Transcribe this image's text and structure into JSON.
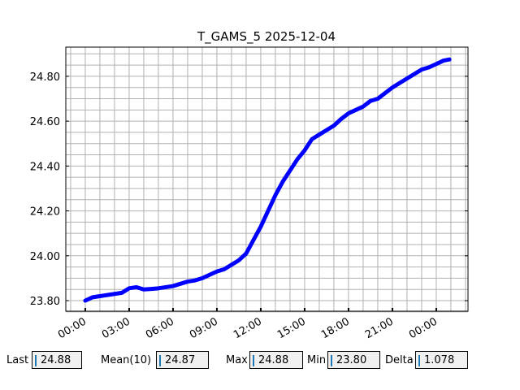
{
  "chart_data": {
    "type": "line",
    "title": "T_GAMS_5 2025-12-04",
    "x": [
      0,
      0.5,
      1,
      1.5,
      2,
      2.5,
      3,
      3.5,
      4,
      4.5,
      5,
      5.5,
      6,
      6.5,
      7,
      7.5,
      8,
      8.5,
      9,
      9.5,
      10,
      10.5,
      11,
      11.5,
      12,
      12.5,
      13,
      13.5,
      14,
      14.5,
      15,
      15.5,
      16,
      16.5,
      17,
      17.5,
      18,
      18.5,
      19,
      19.5,
      20,
      20.5,
      21,
      21.5,
      22,
      22.5,
      23,
      23.5,
      24,
      24.5,
      24.9
    ],
    "series": [
      {
        "name": "T_GAMS_5",
        "color": "#0000ff",
        "values": [
          23.8,
          23.815,
          23.82,
          23.825,
          23.83,
          23.835,
          23.855,
          23.86,
          23.85,
          23.852,
          23.855,
          23.86,
          23.865,
          23.875,
          23.885,
          23.89,
          23.9,
          23.915,
          23.93,
          23.94,
          23.96,
          23.98,
          24.01,
          24.07,
          24.13,
          24.2,
          24.27,
          24.33,
          24.38,
          24.43,
          24.47,
          24.52,
          24.54,
          24.56,
          24.58,
          24.61,
          24.635,
          24.65,
          24.665,
          24.69,
          24.7,
          24.725,
          24.75,
          24.77,
          24.79,
          24.81,
          24.83,
          24.84,
          24.855,
          24.87,
          24.875
        ]
      }
    ],
    "xlim": [
      -1.33,
      26.17
    ],
    "ylim": [
      23.753,
      24.93
    ],
    "xticks": [
      {
        "value": 0,
        "label": "00:00"
      },
      {
        "value": 3,
        "label": "03:00"
      },
      {
        "value": 6,
        "label": "06:00"
      },
      {
        "value": 9,
        "label": "09:00"
      },
      {
        "value": 12,
        "label": "12:00"
      },
      {
        "value": 15,
        "label": "15:00"
      },
      {
        "value": 18,
        "label": "18:00"
      },
      {
        "value": 21,
        "label": "21:00"
      },
      {
        "value": 24,
        "label": "00:00"
      }
    ],
    "yticks": [
      {
        "value": 23.8,
        "label": "23.80"
      },
      {
        "value": 24.0,
        "label": "24.00"
      },
      {
        "value": 24.2,
        "label": "24.20"
      },
      {
        "value": 24.4,
        "label": "24.40"
      },
      {
        "value": 24.6,
        "label": "24.60"
      },
      {
        "value": 24.8,
        "label": "24.80"
      }
    ],
    "xminorticks": [
      -1,
      0,
      1,
      2,
      3,
      4,
      5,
      6,
      7,
      8,
      9,
      10,
      11,
      12,
      13,
      14,
      15,
      16,
      17,
      18,
      19,
      20,
      21,
      22,
      23,
      24,
      25,
      26
    ],
    "yminorticks": [
      23.75,
      23.8,
      23.85,
      23.9,
      23.95,
      24.0,
      24.05,
      24.1,
      24.15,
      24.2,
      24.25,
      24.3,
      24.35,
      24.4,
      24.45,
      24.5,
      24.55,
      24.6,
      24.65,
      24.7,
      24.75,
      24.8,
      24.85,
      24.9
    ],
    "grid": true
  },
  "controls": [
    {
      "label": "Last",
      "value": "24.88"
    },
    {
      "label": "Mean(10)",
      "value": "24.87"
    },
    {
      "label": "Max",
      "value": "24.88"
    },
    {
      "label": "Min",
      "value": "23.80"
    },
    {
      "label": "Delta",
      "value": "1.078"
    }
  ]
}
